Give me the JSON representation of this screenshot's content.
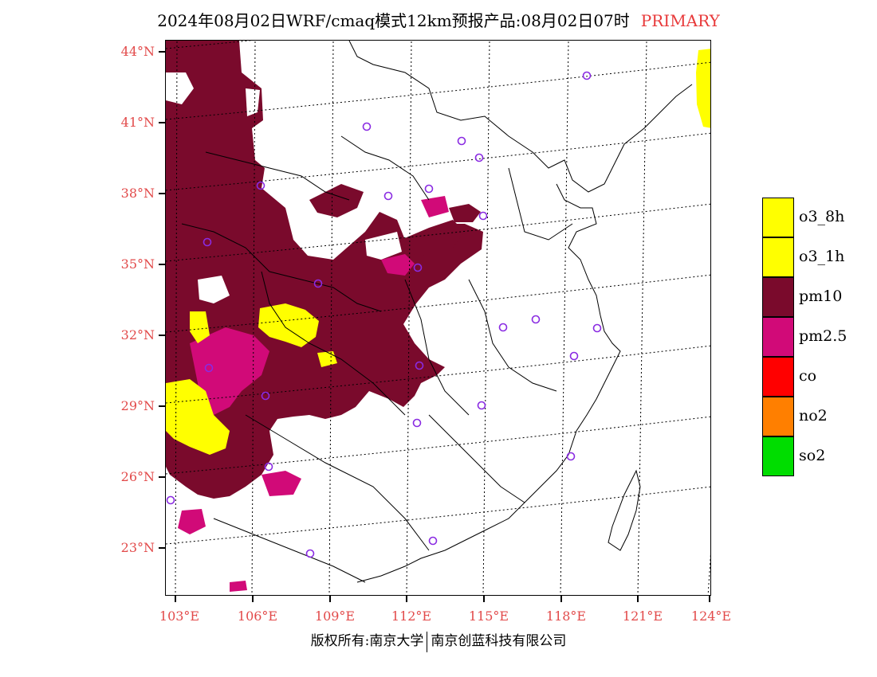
{
  "title": {
    "main": "2024年08月02日WRF/cmaq模式12km预报产品:08月02日07时",
    "tag": "PRIMARY"
  },
  "lat_labels": [
    "44°N",
    "41°N",
    "38°N",
    "35°N",
    "32°N",
    "29°N",
    "26°N",
    "23°N"
  ],
  "lon_labels": [
    "103°E",
    "106°E",
    "109°E",
    "112°E",
    "115°E",
    "118°E",
    "121°E",
    "124°E"
  ],
  "legend": [
    {
      "label": "o3_8h",
      "color": "#ffff00"
    },
    {
      "label": "o3_1h",
      "color": "#ffff00"
    },
    {
      "label": "pm10",
      "color": "#7a0a2c"
    },
    {
      "label": "pm2.5",
      "color": "#d10a78"
    },
    {
      "label": "co",
      "color": "#ff0000"
    },
    {
      "label": "no2",
      "color": "#ff7f00"
    },
    {
      "label": "so2",
      "color": "#00dd00"
    }
  ],
  "footer": {
    "left": "版权所有:南京大学",
    "right": "南京创蓝科技有限公司"
  },
  "colors": {
    "pm10": "#7a0a2c",
    "pm25": "#d10a78",
    "o3": "#ffff00",
    "station_marker": "#8a2be2",
    "axis_label": "#e24a4a"
  }
}
